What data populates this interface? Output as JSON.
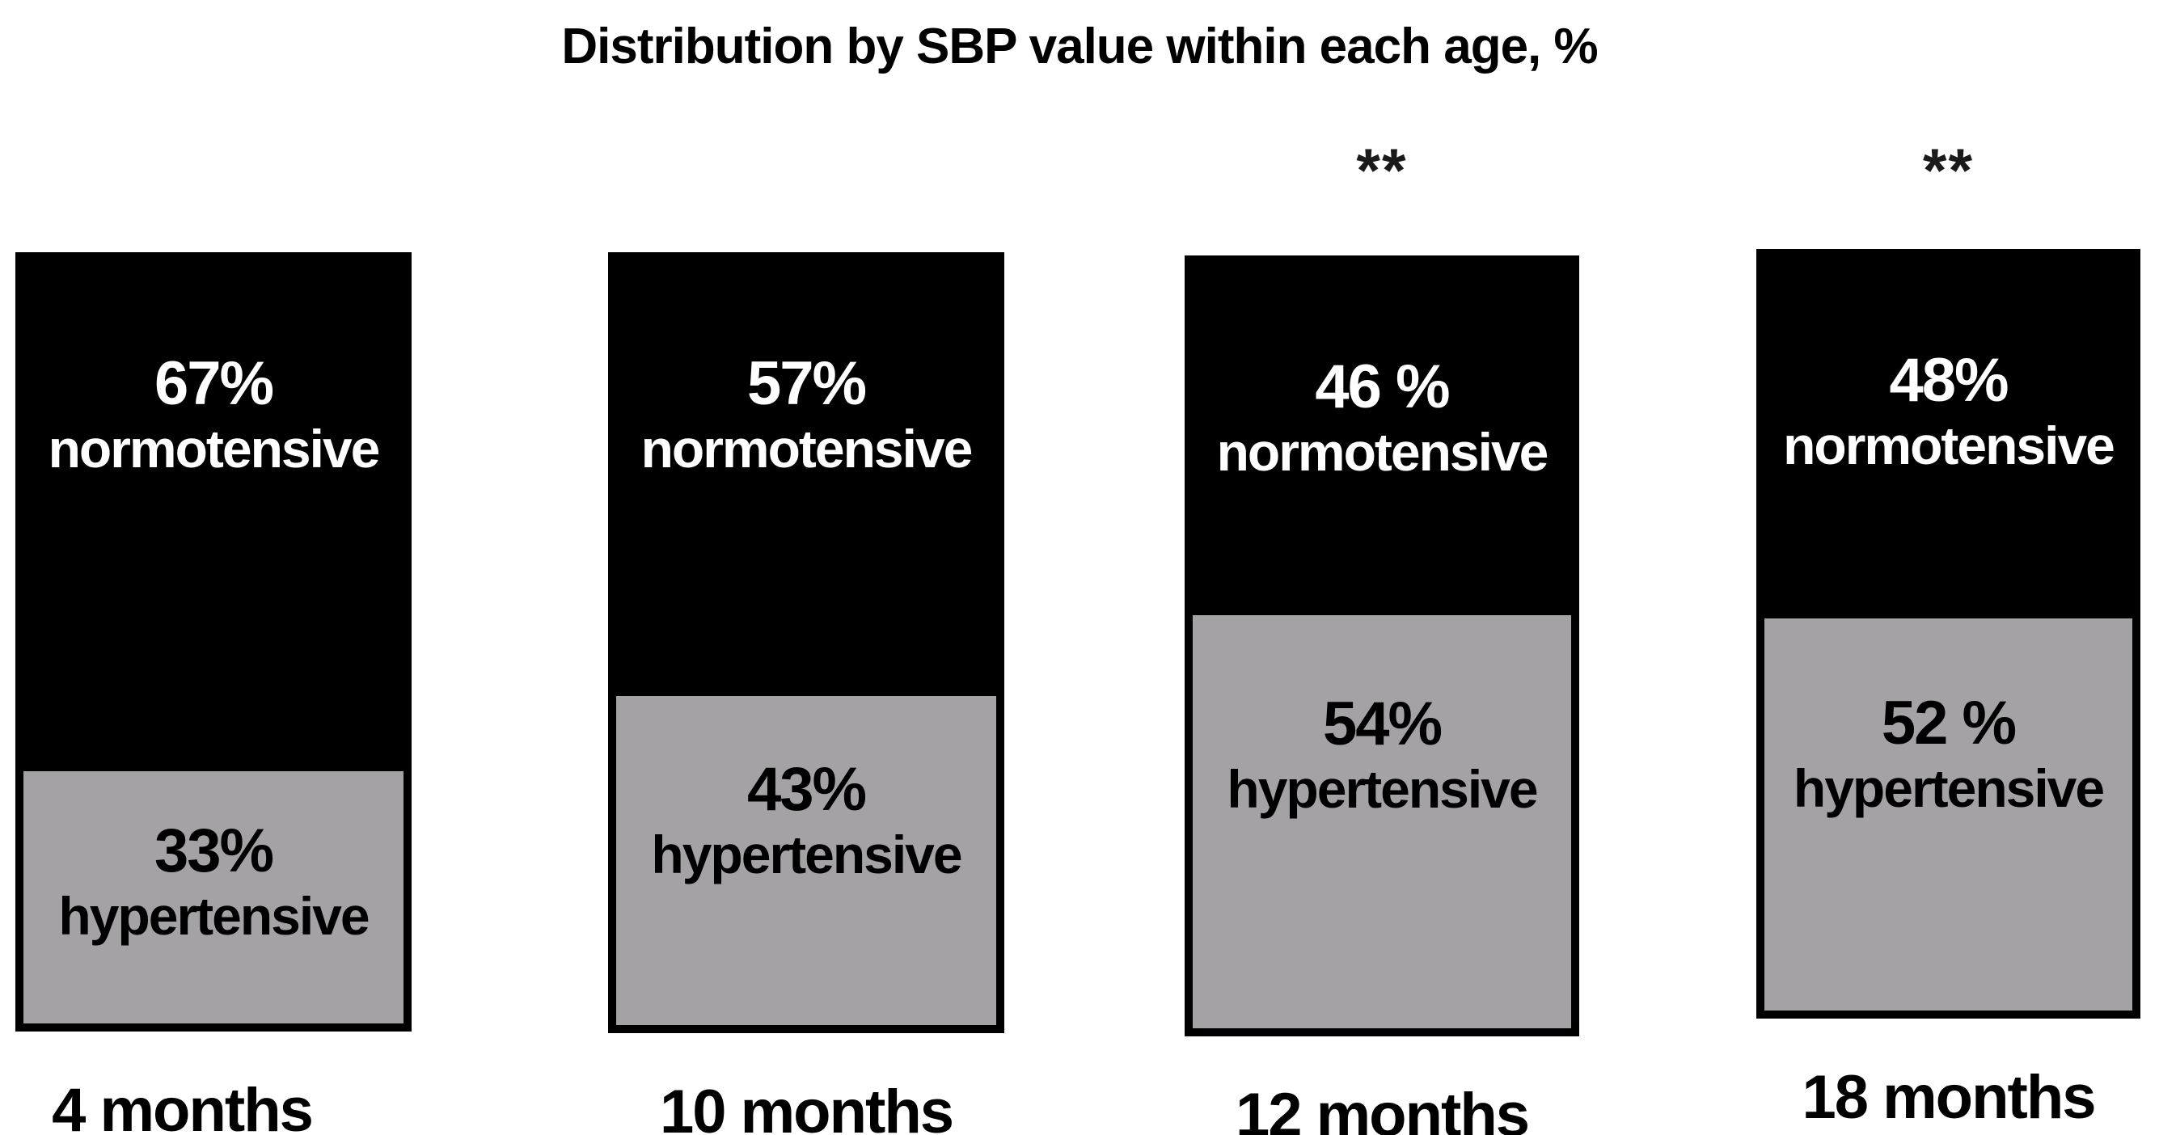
{
  "title": "Distribution by SBP value within each age, %",
  "colors": {
    "normotensive_fill": "#000000",
    "hypertensive_fill": "#a4a2a5",
    "normotensive_text": "#ffffff",
    "hypertensive_text": "#000000",
    "background": "#ffffff"
  },
  "chart_data": {
    "type": "bar",
    "stacked": true,
    "orientation": "vertical",
    "unit": "%",
    "title": "Distribution by SBP value within each age, %",
    "categories": [
      "4 months",
      "10 months",
      "12 months",
      "18 months"
    ],
    "series": [
      {
        "name": "normotensive",
        "values": [
          67,
          57,
          46,
          48
        ],
        "color": "#000000",
        "label_color": "#ffffff"
      },
      {
        "name": "hypertensive",
        "values": [
          33,
          43,
          54,
          52
        ],
        "color": "#a4a2a5",
        "label_color": "#000000"
      }
    ],
    "annotations": [
      {
        "text": "**",
        "category": "12 months",
        "position": "above-bar"
      },
      {
        "text": "**",
        "category": "18 months",
        "position": "above-bar"
      }
    ],
    "xlabel": "",
    "ylabel": "",
    "ylim": [
      0,
      100
    ],
    "grid": false,
    "axes_visible": false,
    "legend_position": "none",
    "value_labels_inside_bars": true
  },
  "bars": [
    {
      "age_label": "4 months",
      "normotensive_label": "67%",
      "normotensive_word": "normotensive",
      "normotensive_pct": 67,
      "hypertensive_label": "33%",
      "hypertensive_word": "hypertensive",
      "hypertensive_pct": 33,
      "significance": ""
    },
    {
      "age_label": "10 months",
      "normotensive_label": "57%",
      "normotensive_word": "normotensive",
      "normotensive_pct": 57,
      "hypertensive_label": "43%",
      "hypertensive_word": "hypertensive",
      "hypertensive_pct": 43,
      "significance": ""
    },
    {
      "age_label": "12 months",
      "normotensive_label": "46 %",
      "normotensive_word": "normotensive",
      "normotensive_pct": 46,
      "hypertensive_label": "54%",
      "hypertensive_word": "hypertensive",
      "hypertensive_pct": 54,
      "significance": "**"
    },
    {
      "age_label": "18 months",
      "normotensive_label": "48%",
      "normotensive_word": "normotensive",
      "normotensive_pct": 48,
      "hypertensive_label": "52 %",
      "hypertensive_word": "hypertensive",
      "hypertensive_pct": 52,
      "significance": "**"
    }
  ]
}
